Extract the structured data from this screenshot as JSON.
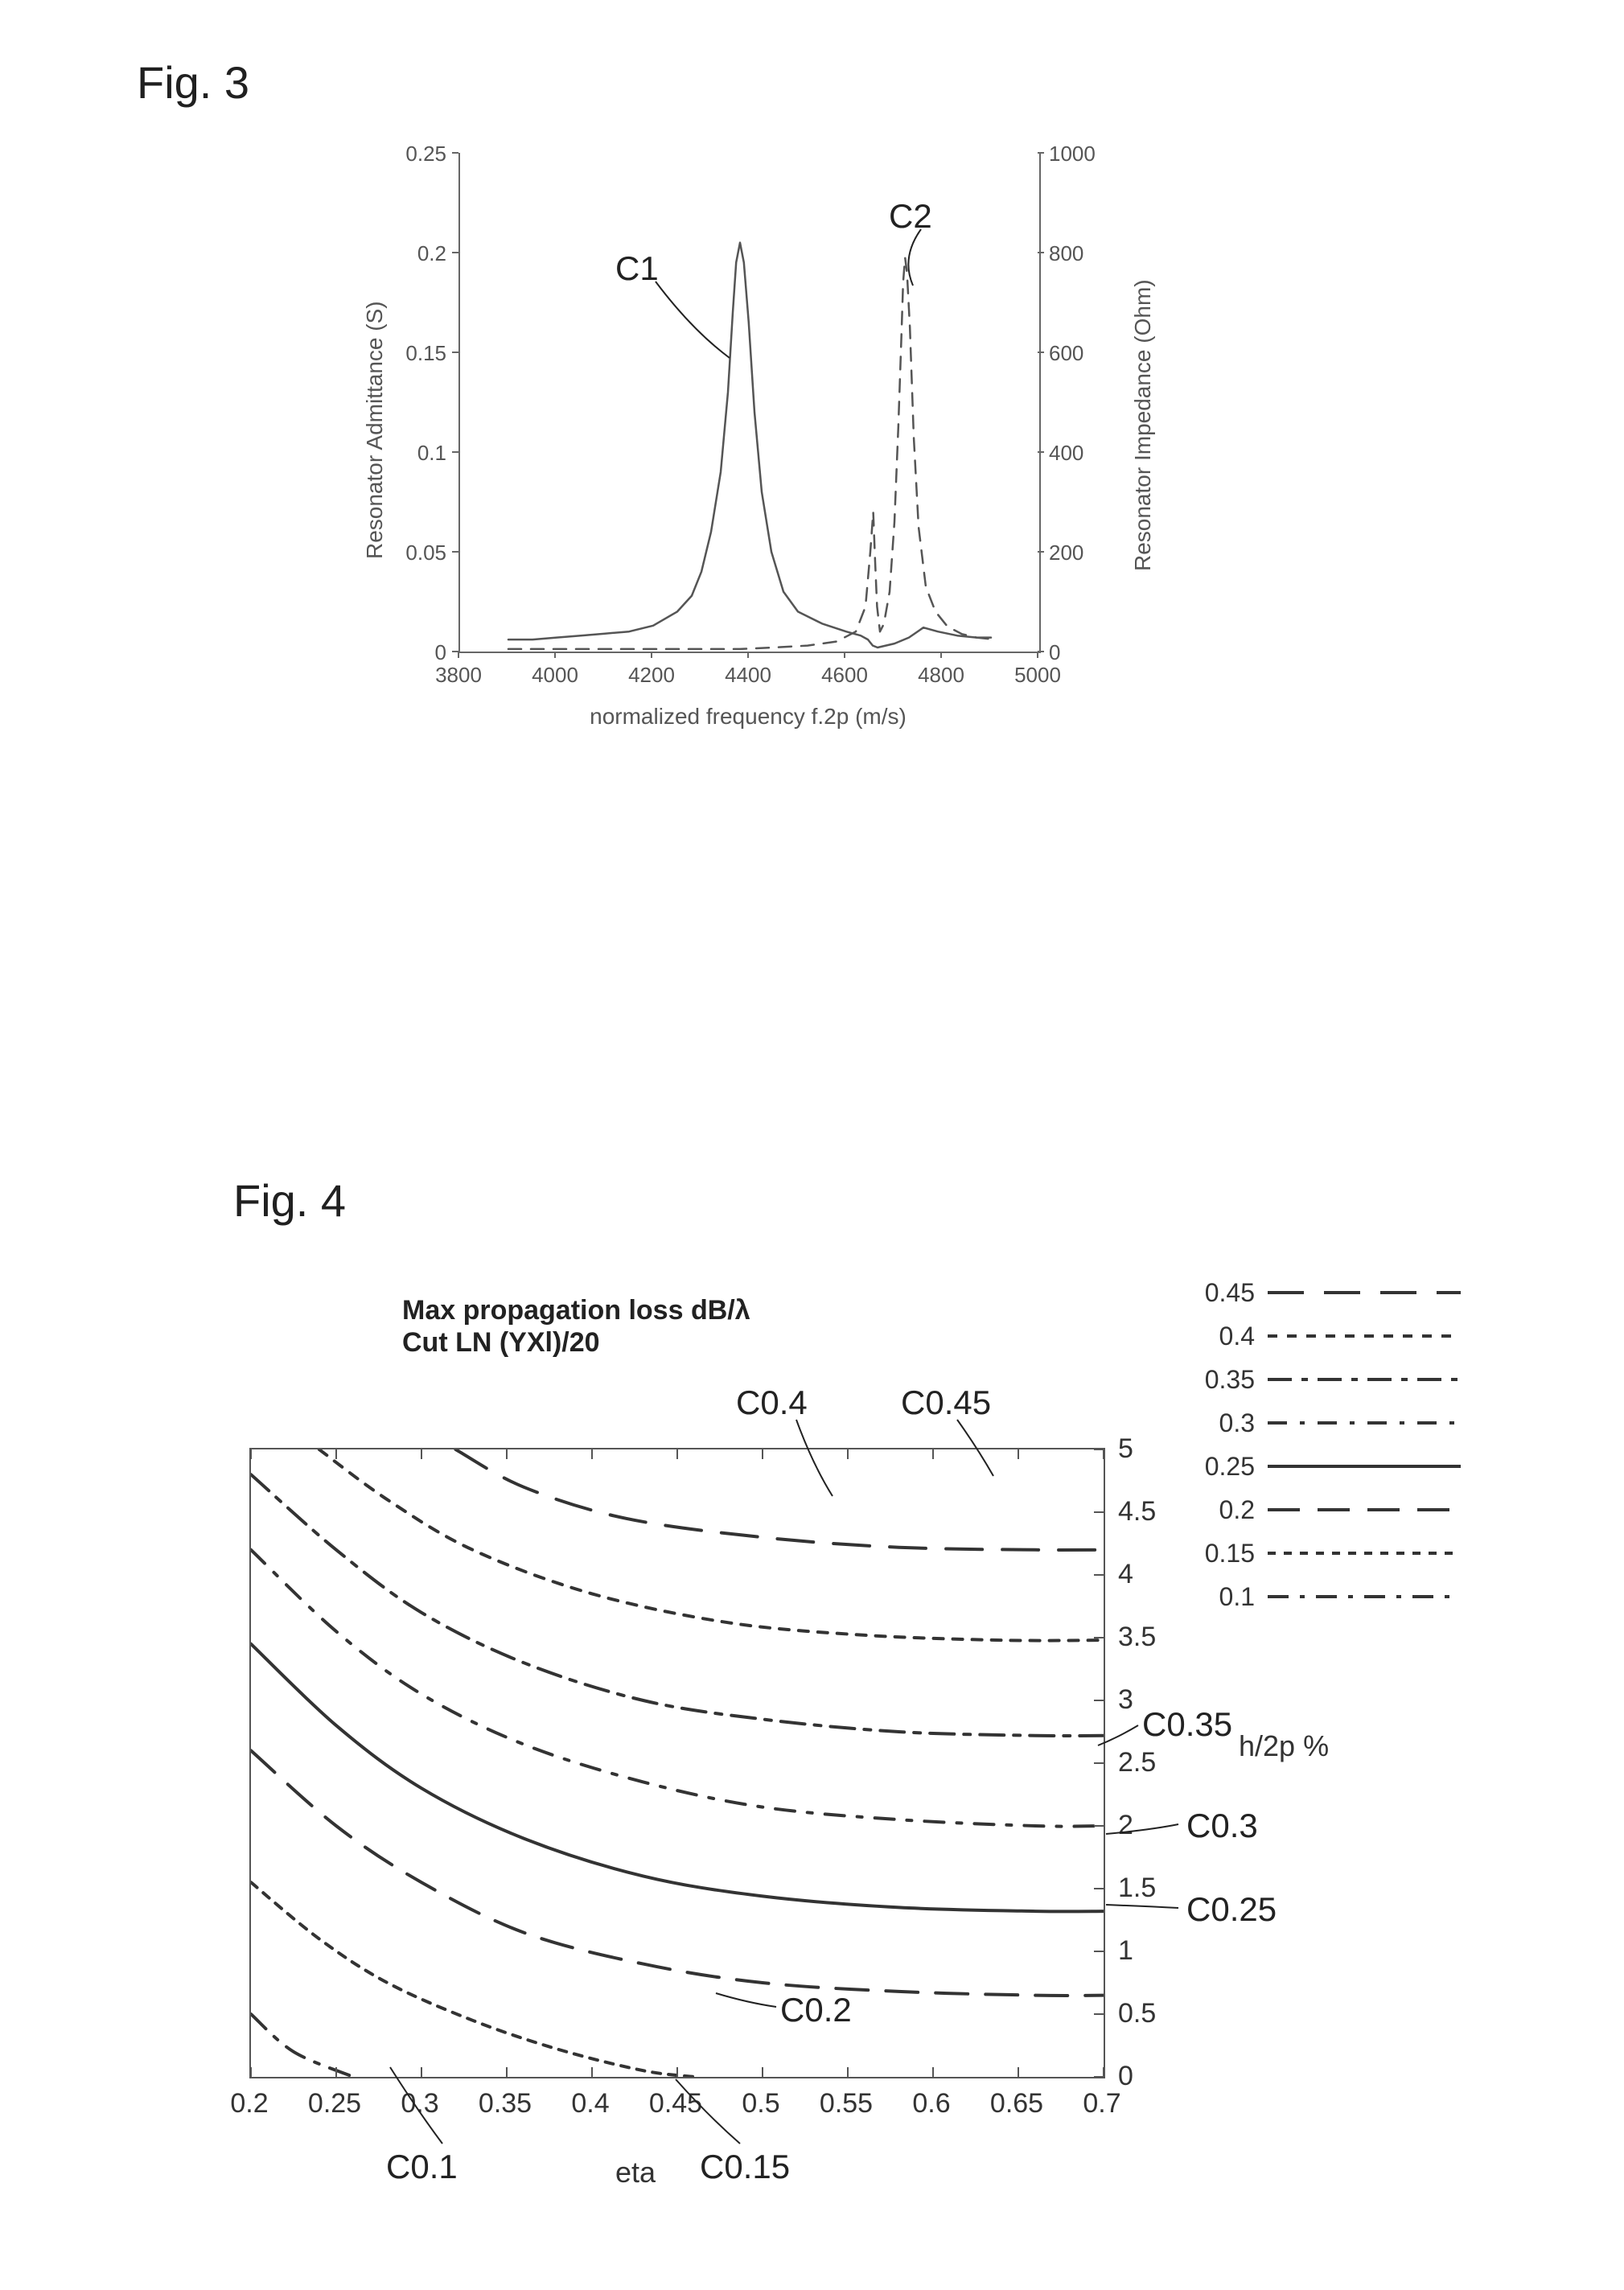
{
  "fig3": {
    "label": "Fig. 3",
    "x_axis_title": "normalized frequency f.2p (m/s)",
    "y_left_title": "Resonator Admittance (S)",
    "y_right_title": "Resonator Impedance (Ohm)",
    "x_ticks": [
      3800,
      4000,
      4200,
      4400,
      4600,
      4800,
      5000
    ],
    "y_left_ticks": [
      0,
      0.05,
      0.1,
      0.15,
      0.2,
      0.25
    ],
    "y_right_ticks": [
      0,
      200,
      400,
      600,
      800,
      1000
    ],
    "xlim": [
      3800,
      5000
    ],
    "ylim_left": [
      0,
      0.25
    ],
    "ylim_right": [
      0,
      1000
    ],
    "curve_color": "#555555",
    "c1": {
      "label": "C1",
      "style": "solid",
      "stroke_width": 2.5,
      "points": [
        [
          3900,
          0.006
        ],
        [
          3950,
          0.006
        ],
        [
          4000,
          0.007
        ],
        [
          4050,
          0.008
        ],
        [
          4100,
          0.009
        ],
        [
          4150,
          0.01
        ],
        [
          4200,
          0.013
        ],
        [
          4250,
          0.02
        ],
        [
          4280,
          0.028
        ],
        [
          4300,
          0.04
        ],
        [
          4320,
          0.06
        ],
        [
          4340,
          0.09
        ],
        [
          4355,
          0.13
        ],
        [
          4365,
          0.17
        ],
        [
          4372,
          0.195
        ],
        [
          4380,
          0.205
        ],
        [
          4388,
          0.195
        ],
        [
          4398,
          0.165
        ],
        [
          4410,
          0.12
        ],
        [
          4425,
          0.08
        ],
        [
          4445,
          0.05
        ],
        [
          4470,
          0.03
        ],
        [
          4500,
          0.02
        ],
        [
          4550,
          0.014
        ],
        [
          4600,
          0.01
        ],
        [
          4630,
          0.008
        ],
        [
          4645,
          0.006
        ],
        [
          4655,
          0.003
        ],
        [
          4665,
          0.002
        ],
        [
          4700,
          0.004
        ],
        [
          4730,
          0.007
        ],
        [
          4760,
          0.012
        ],
        [
          4790,
          0.01
        ],
        [
          4830,
          0.008
        ],
        [
          4870,
          0.007
        ],
        [
          4900,
          0.007
        ]
      ]
    },
    "c2": {
      "label": "C2",
      "style": "dash",
      "stroke_width": 2.5,
      "dash": "16 12",
      "points": [
        [
          3900,
          5
        ],
        [
          4000,
          5
        ],
        [
          4100,
          5
        ],
        [
          4200,
          5
        ],
        [
          4300,
          5
        ],
        [
          4380,
          5
        ],
        [
          4450,
          8
        ],
        [
          4520,
          12
        ],
        [
          4580,
          20
        ],
        [
          4620,
          40
        ],
        [
          4640,
          90
        ],
        [
          4650,
          200
        ],
        [
          4656,
          280
        ],
        [
          4660,
          180
        ],
        [
          4664,
          90
        ],
        [
          4670,
          40
        ],
        [
          4678,
          55
        ],
        [
          4690,
          120
        ],
        [
          4700,
          260
        ],
        [
          4708,
          450
        ],
        [
          4714,
          620
        ],
        [
          4718,
          740
        ],
        [
          4722,
          790
        ],
        [
          4726,
          760
        ],
        [
          4732,
          650
        ],
        [
          4740,
          430
        ],
        [
          4750,
          250
        ],
        [
          4765,
          130
        ],
        [
          4785,
          80
        ],
        [
          4810,
          50
        ],
        [
          4840,
          35
        ],
        [
          4870,
          28
        ],
        [
          4900,
          25
        ]
      ]
    }
  },
  "fig4": {
    "label": "Fig. 4",
    "title_line1": "Max propagation loss dB/λ",
    "title_line2": "Cut LN (YXl)/20",
    "x_axis_title": "eta",
    "y_axis_title": "h/2p %",
    "x_ticks": [
      0.2,
      0.25,
      0.3,
      0.35,
      0.4,
      0.45,
      0.5,
      0.55,
      0.6,
      0.65,
      0.7
    ],
    "y_ticks": [
      0,
      0.5,
      1,
      1.5,
      2,
      2.5,
      3,
      3.5,
      4,
      4.5,
      5
    ],
    "xlim": [
      0.2,
      0.7
    ],
    "ylim": [
      0,
      5
    ],
    "curve_color": "#333333",
    "stroke_width": 4,
    "legend": [
      {
        "val": "0.45",
        "dash": "45 25"
      },
      {
        "val": "0.4",
        "dash": "12 12"
      },
      {
        "val": "0.35",
        "dash": "30 12 8 12"
      },
      {
        "val": "0.3",
        "dash": "24 16 6 16"
      },
      {
        "val": "0.25",
        "dash": ""
      },
      {
        "val": "0.2",
        "dash": "40 22"
      },
      {
        "val": "0.15",
        "dash": "10 10"
      },
      {
        "val": "0.1",
        "dash": "26 14 6 14"
      }
    ],
    "curves": {
      "C0.1": {
        "dash": "26 14 6 14",
        "pts": [
          [
            0.2,
            0.5
          ],
          [
            0.225,
            0.2
          ],
          [
            0.26,
            0.0
          ]
        ]
      },
      "C0.15": {
        "dash": "10 10",
        "pts": [
          [
            0.2,
            1.55
          ],
          [
            0.24,
            1.1
          ],
          [
            0.28,
            0.75
          ],
          [
            0.33,
            0.45
          ],
          [
            0.38,
            0.22
          ],
          [
            0.43,
            0.05
          ],
          [
            0.46,
            0.0
          ]
        ]
      },
      "C0.2": {
        "dash": "40 22",
        "pts": [
          [
            0.2,
            2.6
          ],
          [
            0.25,
            2.0
          ],
          [
            0.3,
            1.55
          ],
          [
            0.36,
            1.15
          ],
          [
            0.43,
            0.9
          ],
          [
            0.5,
            0.75
          ],
          [
            0.58,
            0.68
          ],
          [
            0.66,
            0.65
          ],
          [
            0.7,
            0.65
          ]
        ]
      },
      "C0.25": {
        "dash": "",
        "pts": [
          [
            0.2,
            3.45
          ],
          [
            0.25,
            2.8
          ],
          [
            0.3,
            2.3
          ],
          [
            0.36,
            1.9
          ],
          [
            0.43,
            1.6
          ],
          [
            0.5,
            1.44
          ],
          [
            0.58,
            1.35
          ],
          [
            0.66,
            1.32
          ],
          [
            0.7,
            1.32
          ]
        ]
      },
      "C0.3": {
        "dash": "24 16 6 16",
        "pts": [
          [
            0.2,
            4.2
          ],
          [
            0.25,
            3.55
          ],
          [
            0.3,
            3.05
          ],
          [
            0.36,
            2.65
          ],
          [
            0.43,
            2.35
          ],
          [
            0.5,
            2.15
          ],
          [
            0.58,
            2.05
          ],
          [
            0.66,
            2.0
          ],
          [
            0.7,
            2.0
          ]
        ]
      },
      "C0.35": {
        "dash": "30 12 8 12",
        "pts": [
          [
            0.2,
            4.8
          ],
          [
            0.25,
            4.2
          ],
          [
            0.3,
            3.7
          ],
          [
            0.36,
            3.3
          ],
          [
            0.43,
            3.0
          ],
          [
            0.5,
            2.85
          ],
          [
            0.58,
            2.75
          ],
          [
            0.66,
            2.72
          ],
          [
            0.7,
            2.72
          ]
        ]
      },
      "C0.4": {
        "dash": "12 12",
        "pts": [
          [
            0.24,
            5.0
          ],
          [
            0.28,
            4.6
          ],
          [
            0.33,
            4.2
          ],
          [
            0.4,
            3.85
          ],
          [
            0.48,
            3.62
          ],
          [
            0.56,
            3.52
          ],
          [
            0.64,
            3.48
          ],
          [
            0.7,
            3.48
          ]
        ]
      },
      "C0.45": {
        "dash": "45 25",
        "pts": [
          [
            0.32,
            5.0
          ],
          [
            0.36,
            4.7
          ],
          [
            0.42,
            4.45
          ],
          [
            0.5,
            4.3
          ],
          [
            0.58,
            4.22
          ],
          [
            0.66,
            4.2
          ],
          [
            0.7,
            4.2
          ]
        ]
      }
    },
    "curve_labels": {
      "C0.4": "C0.4",
      "C0.45": "C0.45",
      "C0.35": "C0.35",
      "C0.3": "C0.3",
      "C0.25": "C0.25",
      "C0.2": "C0.2",
      "C0.15": "C0.15",
      "C0.1": "C0.1"
    }
  }
}
